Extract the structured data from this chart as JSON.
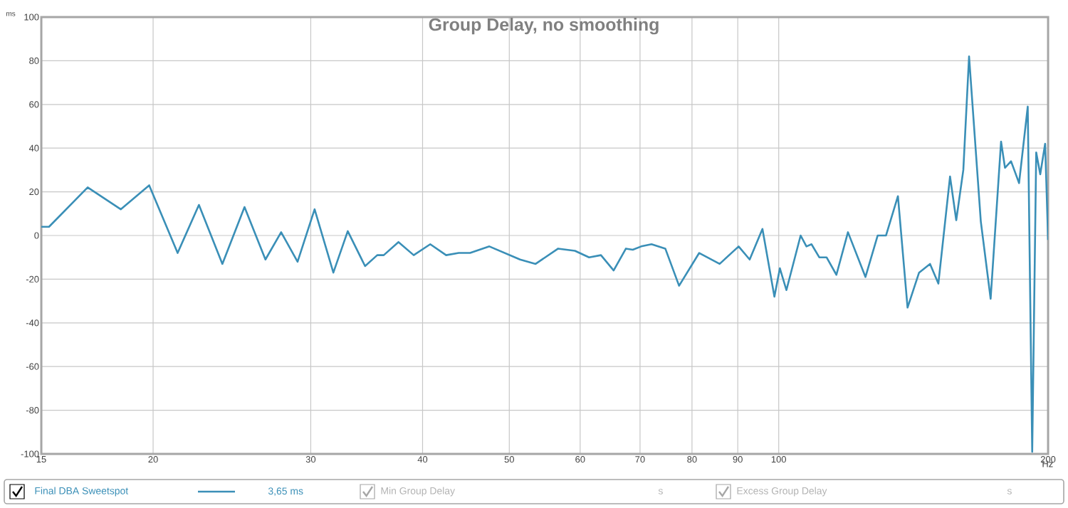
{
  "chart_data": {
    "type": "line",
    "title": "Group Delay, no smoothing",
    "xlabel": "Hz",
    "ylabel": "ms",
    "log": "x",
    "grid": true,
    "legend": "bottom",
    "line_style": "solid",
    "xlim": [
      15,
      200
    ],
    "ylim": [
      -100,
      100
    ],
    "xticks": [
      15,
      20,
      30,
      40,
      50,
      60,
      70,
      80,
      90,
      100,
      200
    ],
    "yticks": [
      -100,
      -80,
      -60,
      -40,
      -20,
      0,
      20,
      40,
      60,
      80,
      100
    ],
    "x": [
      15,
      15.3,
      16.9,
      18.4,
      19.8,
      21.3,
      22.5,
      23.9,
      25.3,
      26.7,
      27.8,
      29.0,
      30.3,
      31.8,
      33.0,
      34.5,
      35.6,
      36.2,
      37.6,
      39.1,
      40.8,
      42.5,
      43.9,
      45.2,
      47.5,
      51.4,
      53.5,
      56.7,
      59.2,
      61.4,
      63.3,
      65.4,
      67.5,
      68.7,
      70.2,
      72.1,
      74.7,
      77.4,
      81.5,
      85.9,
      90.2,
      92.8,
      95.9,
      98.9,
      100.3,
      102,
      105.8,
      107.4,
      108.8,
      111,
      113.1,
      116,
      119.5,
      125,
      129,
      131.8,
      135.9,
      139.3,
      143.5,
      147.6,
      150.8,
      155.4,
      157.9,
      160.8,
      163.2,
      168.2,
      172.5,
      177.2,
      179,
      181.8,
      185.6,
      189.8,
      192,
      194,
      196,
      198.5,
      200
    ],
    "series": [
      {
        "name": "Final DBA Sweetspot",
        "color": "#3a8fb7",
        "values": [
          4,
          4,
          22,
          12,
          23,
          -8,
          14,
          -13,
          13,
          -11,
          1.5,
          -12,
          12,
          -17,
          2,
          -14,
          -9,
          -9,
          -3,
          -9,
          -4,
          -9,
          -8,
          -8,
          -5,
          -11,
          -13,
          -6,
          -7,
          -10,
          -9,
          -16,
          -6,
          -6.5,
          -5,
          -4,
          -6,
          -23,
          -8,
          -13,
          -5,
          -11,
          3,
          -28,
          -15,
          -25,
          0,
          -5,
          -4,
          -10,
          -10,
          -18,
          1.5,
          -19,
          0,
          0,
          18,
          -33,
          -17,
          -13,
          -22,
          27,
          7,
          30,
          82,
          6.5,
          -29,
          43,
          31,
          34,
          24,
          59,
          -99,
          38,
          28,
          42,
          -2
        ]
      }
    ],
    "annotations": [
      "3,65 ms",
      "Min Group Delay",
      "s",
      "Excess Group Delay",
      "s"
    ]
  }
}
